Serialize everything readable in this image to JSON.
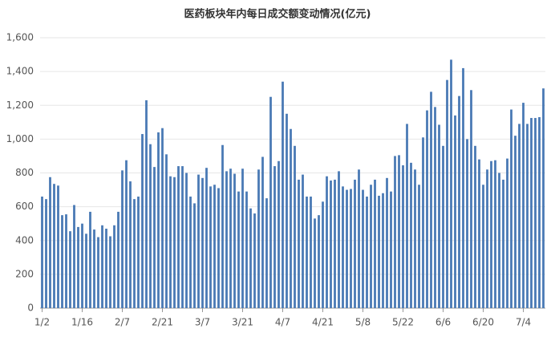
{
  "chart_data": {
    "type": "bar",
    "title": "医药板块年内每日成交额变动情况(亿元)",
    "categories": [
      "1/2",
      null,
      null,
      null,
      null,
      null,
      null,
      null,
      null,
      null,
      "1/16",
      null,
      null,
      null,
      null,
      null,
      null,
      null,
      null,
      null,
      "2/7",
      null,
      null,
      null,
      null,
      null,
      null,
      null,
      null,
      null,
      "2/21",
      null,
      null,
      null,
      null,
      null,
      null,
      null,
      null,
      null,
      "3/7",
      null,
      null,
      null,
      null,
      null,
      null,
      null,
      null,
      null,
      "3/21",
      null,
      null,
      null,
      null,
      null,
      null,
      null,
      null,
      null,
      "4/7",
      null,
      null,
      null,
      null,
      null,
      null,
      null,
      null,
      null,
      "4/21",
      null,
      null,
      null,
      null,
      null,
      null,
      null,
      null,
      null,
      "5/8",
      null,
      null,
      null,
      null,
      null,
      null,
      null,
      null,
      null,
      "5/22",
      null,
      null,
      null,
      null,
      null,
      null,
      null,
      null,
      null,
      "6/6",
      null,
      null,
      null,
      null,
      null,
      null,
      null,
      null,
      null,
      "6/20",
      null,
      null,
      null,
      null,
      null,
      null,
      null,
      null,
      null,
      "7/4",
      null,
      null,
      null,
      null,
      null
    ],
    "values": [
      660,
      645,
      775,
      735,
      725,
      550,
      555,
      455,
      610,
      480,
      500,
      440,
      570,
      465,
      420,
      490,
      470,
      425,
      490,
      570,
      815,
      875,
      750,
      645,
      660,
      1030,
      1230,
      970,
      835,
      1040,
      1065,
      910,
      780,
      775,
      840,
      840,
      800,
      660,
      620,
      790,
      770,
      830,
      720,
      730,
      710,
      965,
      810,
      825,
      795,
      690,
      825,
      690,
      590,
      560,
      820,
      895,
      650,
      1250,
      840,
      870,
      1340,
      1150,
      1060,
      960,
      760,
      790,
      660,
      660,
      530,
      550,
      630,
      780,
      755,
      760,
      810,
      720,
      700,
      705,
      760,
      820,
      700,
      660,
      730,
      760,
      665,
      680,
      770,
      690,
      900,
      905,
      845,
      1090,
      860,
      820,
      730,
      1010,
      1170,
      1280,
      1190,
      1085,
      960,
      1350,
      1470,
      1140,
      1255,
      1420,
      1000,
      1290,
      960,
      880,
      730,
      820,
      870,
      875,
      800,
      760,
      885,
      1175,
      1020,
      1090,
      1215,
      1090,
      1125,
      1125,
      1130,
      1300
    ],
    "color": "#4a7ab5",
    "ylim": [
      0,
      1600
    ],
    "yticks": [
      0,
      200,
      400,
      600,
      800,
      {
        "value": 1000,
        "label": "1,000"
      },
      {
        "value": 1200,
        "label": "1,200"
      },
      {
        "value": 1400,
        "label": "1,400"
      },
      {
        "value": 1600,
        "label": "1,600"
      }
    ],
    "grid": true
  }
}
